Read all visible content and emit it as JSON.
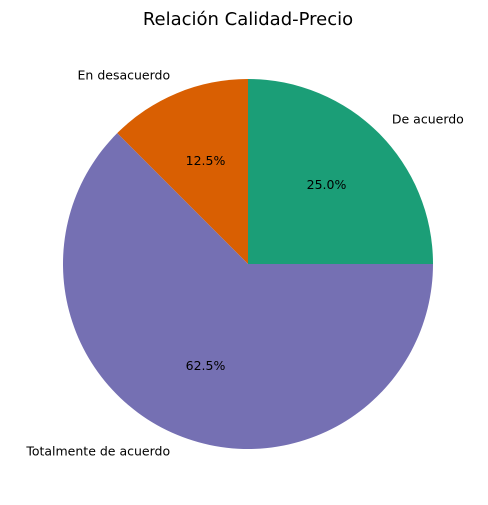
{
  "chart_data": {
    "type": "pie",
    "title": "Relación Calidad-Precio",
    "labels": [
      "De acuerdo",
      "En desacuerdo",
      "Totalmente de acuerdo"
    ],
    "values": [
      25.0,
      12.5,
      62.5
    ],
    "percent_labels": [
      "25.0%",
      "12.5%",
      "62.5%"
    ],
    "colors": [
      "#1b9e77",
      "#d95f02",
      "#7570b3"
    ],
    "start_angle_deg": 0,
    "direction": "counterclockwise",
    "legend": "none"
  }
}
